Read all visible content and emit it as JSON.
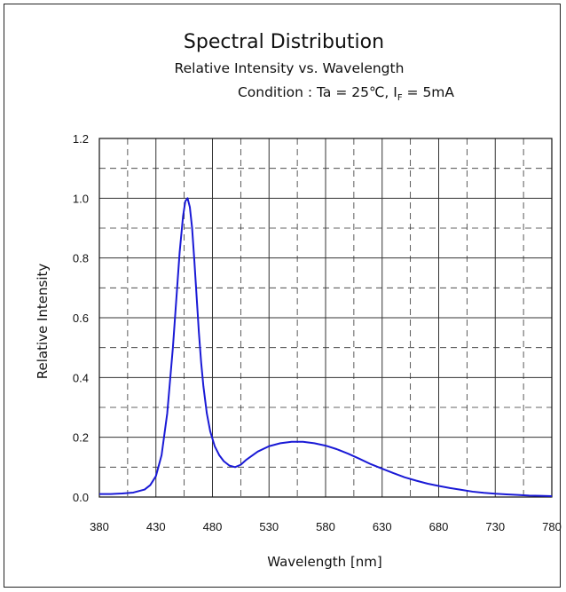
{
  "chart_data": {
    "type": "line",
    "title": "Spectral Distribution",
    "subtitle": "Relative Intensity vs. Wavelength",
    "condition": {
      "prefix": "Condition : Ta = 25",
      "degree_unit": "℃",
      "sep": ", I",
      "subscript": "F",
      "suffix": " = 5mA"
    },
    "xlabel": "Wavelength [nm]",
    "ylabel": "Relative Intensity",
    "xlim": [
      380,
      780
    ],
    "ylim": [
      0,
      1.2
    ],
    "xticks": [
      380,
      430,
      480,
      530,
      580,
      630,
      680,
      730,
      780
    ],
    "yticks": [
      "0.0",
      "0.2",
      "0.4",
      "0.6",
      "0.8",
      "1.0",
      "1.2"
    ],
    "grid": true,
    "colors": {
      "series": "#1a1ad6",
      "axis": "#111111",
      "grid": "#333333"
    },
    "series": [
      {
        "x": [
          380,
          390,
          400,
          410,
          420,
          425,
          430,
          435,
          440,
          445,
          448,
          451,
          454,
          456,
          458,
          460,
          462,
          464,
          466,
          468,
          470,
          472,
          475,
          478,
          482,
          486,
          490,
          495,
          500,
          505,
          510,
          520,
          530,
          540,
          550,
          560,
          570,
          580,
          590,
          600,
          610,
          620,
          630,
          640,
          650,
          660,
          670,
          680,
          690,
          700,
          710,
          720,
          730,
          740,
          750,
          760,
          770,
          780
        ],
        "y": [
          0.01,
          0.01,
          0.012,
          0.015,
          0.025,
          0.04,
          0.07,
          0.14,
          0.28,
          0.5,
          0.66,
          0.82,
          0.94,
          0.99,
          1.0,
          0.97,
          0.9,
          0.79,
          0.67,
          0.55,
          0.45,
          0.37,
          0.28,
          0.22,
          0.17,
          0.14,
          0.12,
          0.105,
          0.1,
          0.108,
          0.125,
          0.152,
          0.17,
          0.18,
          0.185,
          0.185,
          0.18,
          0.172,
          0.16,
          0.145,
          0.128,
          0.11,
          0.095,
          0.08,
          0.066,
          0.055,
          0.045,
          0.037,
          0.03,
          0.024,
          0.018,
          0.014,
          0.011,
          0.009,
          0.007,
          0.005,
          0.004,
          0.003
        ]
      }
    ]
  }
}
